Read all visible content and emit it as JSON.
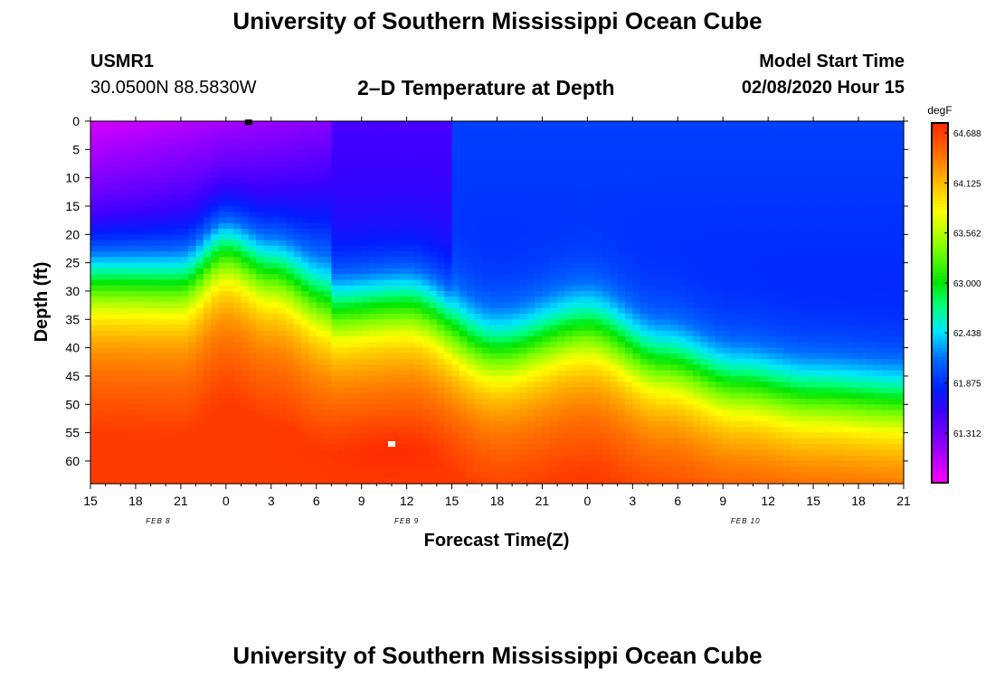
{
  "page": {
    "top_title": "University of Southern Mississippi Ocean Cube",
    "bottom_title": "University of Southern Mississippi Ocean Cube",
    "station_id": "USMR1",
    "station_coords": "30.0500N 88.5830W",
    "chart_title": "2–D Temperature at Depth",
    "model_start_label": "Model Start Time",
    "model_start_value": "02/08/2020 Hour 15"
  },
  "chart_data": {
    "type": "heatmap",
    "title": "2–D Temperature at Depth",
    "xlabel": "Forecast Time(Z)",
    "ylabel": "Depth (ft)",
    "x_tick_labels": [
      "15",
      "18",
      "21",
      "0",
      "3",
      "6",
      "9",
      "12",
      "15",
      "18",
      "21",
      "0",
      "3",
      "6",
      "9",
      "12",
      "15",
      "18",
      "21"
    ],
    "x_hours": [
      0,
      54
    ],
    "date_labels": [
      {
        "text": "FEB 8",
        "hour": 4.5
      },
      {
        "text": "FEB 9",
        "hour": 21
      },
      {
        "text": "FEB 10",
        "hour": 43.5
      }
    ],
    "y_ticks": [
      0,
      5,
      10,
      15,
      20,
      25,
      30,
      35,
      40,
      45,
      50,
      55,
      60
    ],
    "ylim": [
      0,
      64
    ],
    "colorbar": {
      "unit": "degF",
      "tick_labels": [
        "64.688",
        "64.125",
        "63.562",
        "63.000",
        "62.438",
        "61.875",
        "61.312"
      ],
      "tick_values": [
        64.688,
        64.125,
        63.562,
        63.0,
        62.438,
        61.875,
        61.312
      ],
      "vmin": 60.75,
      "vmax": 64.8
    },
    "thermocline_depth_ft": {
      "hours": [
        0,
        6,
        9,
        12,
        16,
        21,
        27,
        33,
        38,
        43,
        48,
        54
      ],
      "depth": [
        28.5,
        29,
        23,
        27,
        33,
        32,
        40,
        36,
        42,
        46,
        48,
        49
      ]
    },
    "markers": [
      {
        "hour": 10.5,
        "depth": 0.2,
        "color": "#000000"
      },
      {
        "hour": 20,
        "depth": 57,
        "color": "#ffffff"
      }
    ]
  }
}
